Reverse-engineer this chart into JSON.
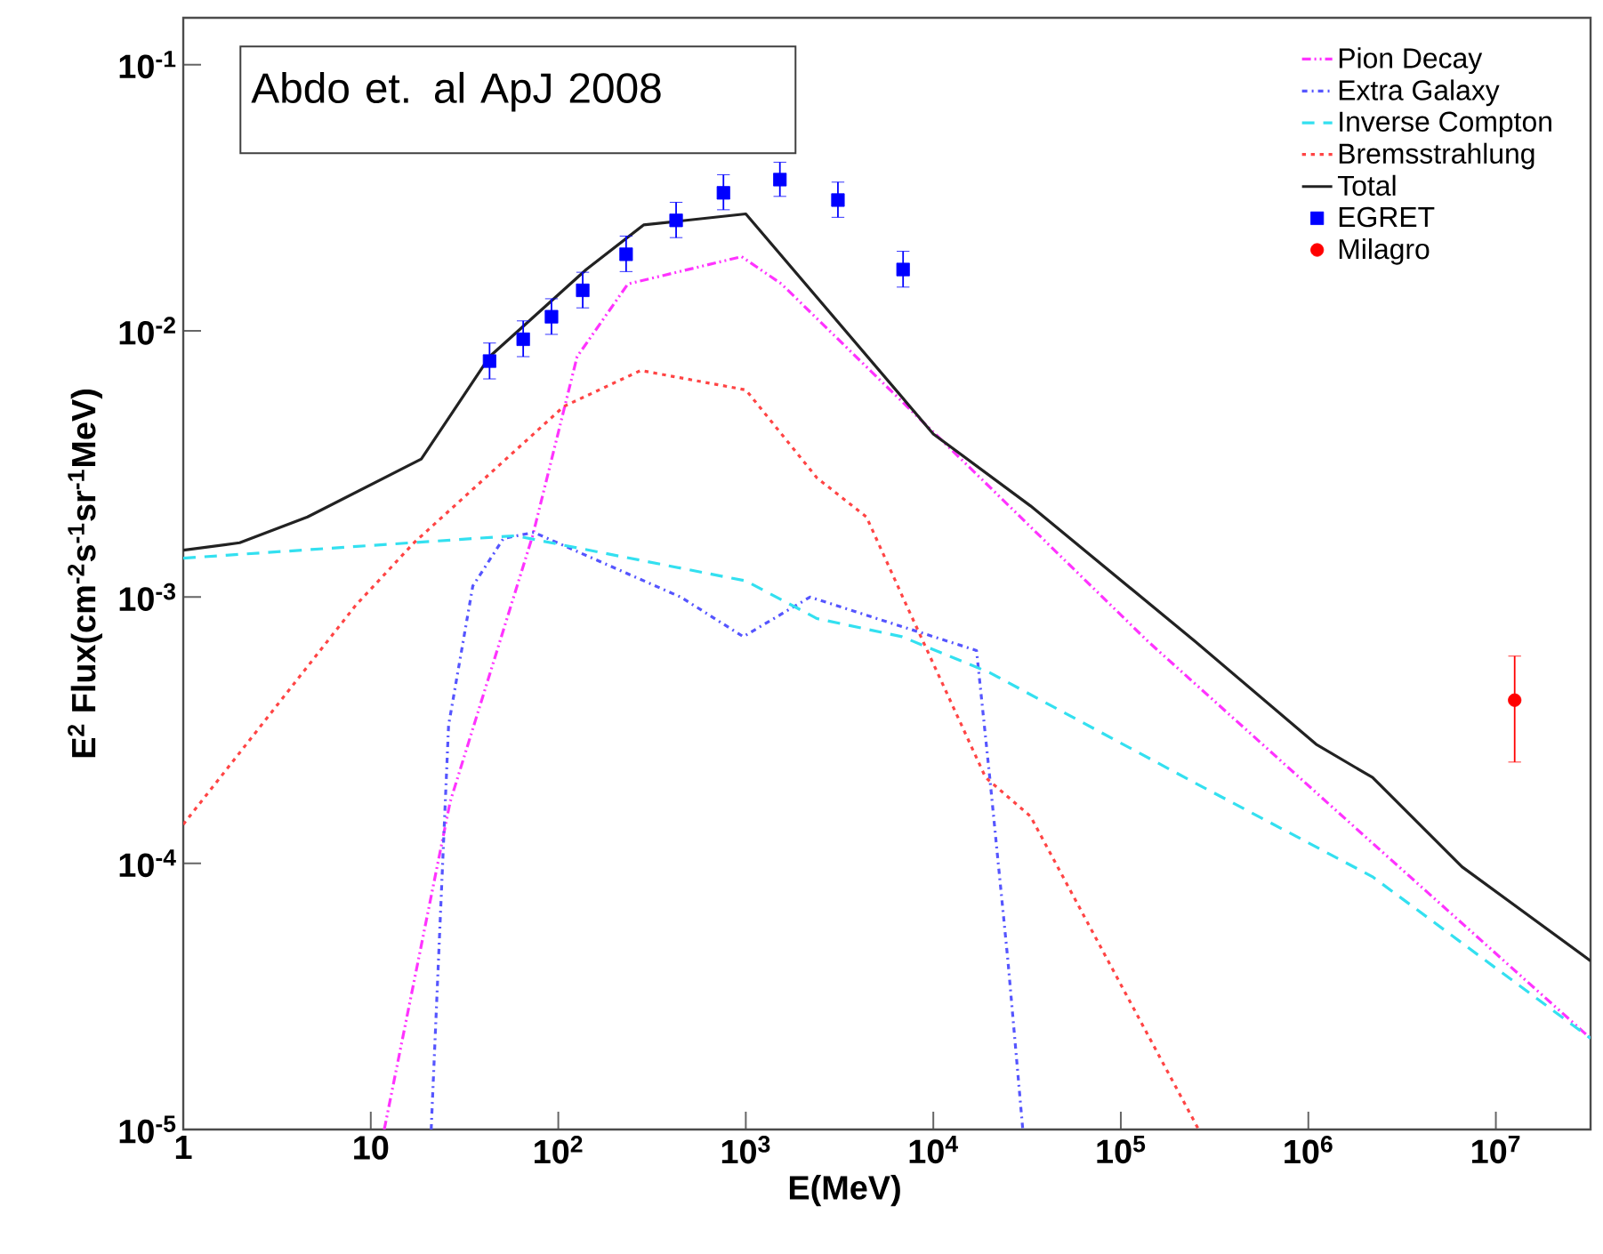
{
  "chart_data": {
    "type": "line",
    "xlabel": "E(MeV)",
    "ylabel": "E$^{2}$ Flux(cm$^{-2}$s$^{-1}$sr$^{-1}$MeV)",
    "annotations": [
      "Abdo et. al ApJ 2008"
    ],
    "log": "xy",
    "legend": "top right",
    "xlim": [
      1,
      32000000
    ],
    "ylim": [
      1e-05,
      0.15
    ],
    "xticks": [
      1,
      10,
      {
        "value": 100,
        "label": "10$^{2}$"
      },
      {
        "value": 1000,
        "label": "10$^{3}$"
      },
      {
        "value": 10000,
        "label": "10$^{4}$"
      },
      {
        "value": 100000,
        "label": "10$^{5}$"
      },
      {
        "value": 1000000,
        "label": "10$^{6}$"
      },
      {
        "value": 10000000,
        "label": "10$^{7}$"
      }
    ],
    "yticks": [
      {
        "value": 1e-05,
        "label": "10$^{-5}$"
      },
      {
        "value": 0.0001,
        "label": "10$^{-4}$"
      },
      {
        "value": 0.001,
        "label": "10$^{-3}$"
      },
      {
        "value": 0.01,
        "label": "10$^{-2}$"
      },
      {
        "value": 0.1,
        "label": "10$^{-1}$"
      }
    ],
    "series": [
      {
        "name": "Pion Decay",
        "color": "#ff33ff",
        "line_style": "dashdotdotted",
        "x": [
          11.8,
          26.5,
          73,
          126,
          235,
          950,
          1550,
          140000,
          1700000,
          32000000
        ],
        "values": [
          1e-05,
          0.00017,
          0.0017,
          0.008,
          0.015,
          0.019,
          0.015,
          0.00068,
          0.00014,
          2.2e-05
        ]
      },
      {
        "name": "Extra Galaxy",
        "color": "#5555ff",
        "line_style": "dashdotted",
        "x": [
          21,
          26,
          35,
          51,
          74,
          450,
          970,
          2200,
          17000,
          20000,
          25000,
          30000
        ],
        "values": [
          1e-05,
          0.00033,
          0.0011,
          0.00166,
          0.00175,
          0.001,
          0.00071,
          0.001,
          0.00063,
          0.00021,
          4.3e-05,
          1e-05
        ]
      },
      {
        "name": "Inverse Compton",
        "color": "#33e0f0",
        "line_style": "dashed",
        "x": [
          1,
          59,
          1000,
          2400,
          6800,
          20000,
          250000,
          2200000,
          32000000
        ],
        "values": [
          0.0014,
          0.0017,
          0.00115,
          0.00083,
          0.00071,
          0.00052,
          0.0002,
          8.9e-05,
          2.2e-05
        ]
      },
      {
        "name": "Bremsstrahlung",
        "color": "#ff4444",
        "line_style": "dotted",
        "x": [
          1,
          8.3,
          17,
          107,
          275,
          1000,
          2400,
          4400,
          7200,
          19000,
          33000,
          260000
        ],
        "values": [
          0.00014,
          0.00093,
          0.0016,
          0.0052,
          0.0071,
          0.006,
          0.0028,
          0.002,
          0.00093,
          0.00021,
          0.00015,
          1e-05
        ]
      },
      {
        "name": "Total",
        "color": "#222222",
        "line_style": "solid",
        "x": [
          1,
          2,
          4.6,
          18.6,
          43,
          141,
          285,
          1000,
          10000,
          33000,
          250000,
          1100000,
          2200000,
          6600000,
          32000000
        ],
        "values": [
          0.0015,
          0.0016,
          0.002,
          0.0033,
          0.008,
          0.017,
          0.025,
          0.0275,
          0.0041,
          0.0022,
          0.00068,
          0.00028,
          0.00021,
          9.7e-05,
          4.3e-05
        ]
      },
      {
        "name": "EGRET",
        "type": "scatter",
        "color": "#0000ff",
        "marker": "square",
        "x": [
          43,
          65,
          92,
          135,
          230,
          425,
          760,
          1520,
          3100,
          6900
        ],
        "values": [
          0.0077,
          0.0093,
          0.0113,
          0.0142,
          0.0194,
          0.026,
          0.033,
          0.037,
          0.031,
          0.017
        ],
        "errors": [
          [
            0.0066,
            0.009
          ],
          [
            0.008,
            0.0109
          ],
          [
            0.0097,
            0.0132
          ],
          [
            0.0122,
            0.0166
          ],
          [
            0.0167,
            0.0227
          ],
          [
            0.0224,
            0.0304
          ],
          [
            0.0285,
            0.0386
          ],
          [
            0.032,
            0.043
          ],
          [
            0.0267,
            0.0362
          ],
          [
            0.0146,
            0.0199
          ]
        ]
      },
      {
        "name": "Milagro",
        "type": "scatter",
        "color": "#ff0000",
        "marker": "circle",
        "x": [
          12600000
        ],
        "values": [
          0.00041
        ],
        "errors": [
          [
            0.00024,
            0.0006
          ]
        ]
      }
    ]
  }
}
